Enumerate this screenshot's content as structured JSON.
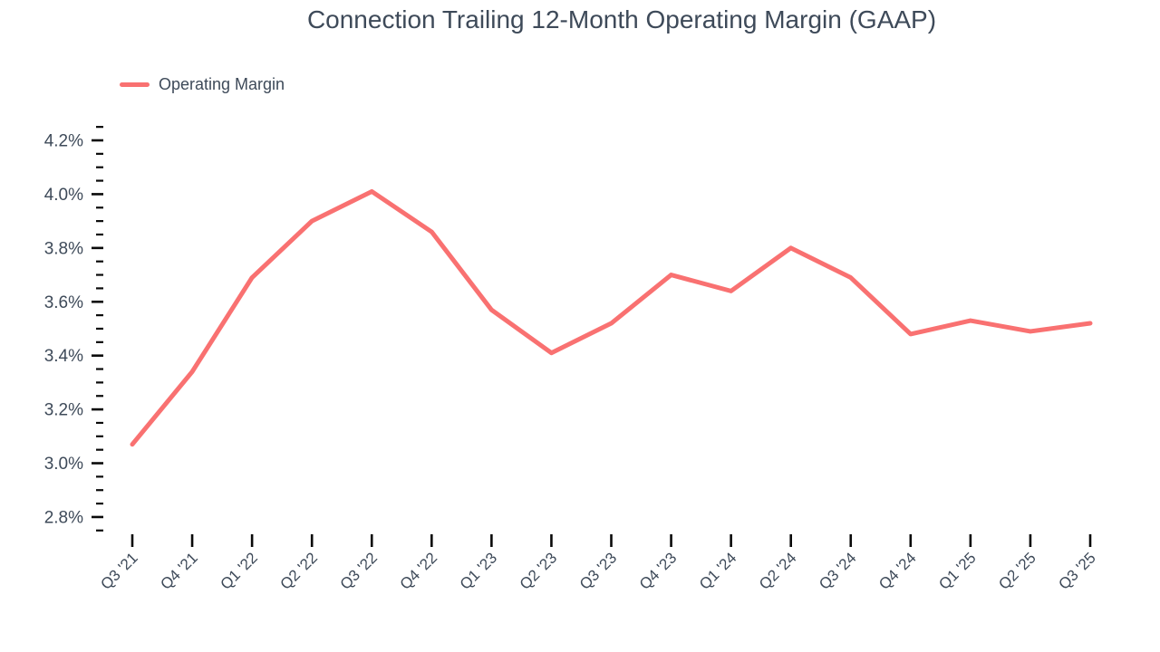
{
  "title": "Connection Trailing 12-Month Operating Margin (GAAP)",
  "legend": {
    "items": [
      {
        "label": "Operating Margin",
        "color": "#F97171"
      }
    ],
    "position": "top-left"
  },
  "colors": {
    "line": "#F97171",
    "text": "#3E4A59",
    "tick": "#0a0a0a",
    "background": "#ffffff"
  },
  "chart_data": {
    "type": "line",
    "title": "Connection Trailing 12-Month Operating Margin (GAAP)",
    "x": [
      "Q3 '21",
      "Q4 '21",
      "Q1 '22",
      "Q2 '22",
      "Q3 '22",
      "Q4 '22",
      "Q1 '23",
      "Q2 '23",
      "Q3 '23",
      "Q4 '23",
      "Q1 '24",
      "Q2 '24",
      "Q3 '24",
      "Q4 '24",
      "Q1 '25",
      "Q2 '25",
      "Q3 '25"
    ],
    "series": [
      {
        "name": "Operating Margin",
        "values": [
          3.07,
          3.34,
          3.69,
          3.9,
          4.01,
          3.86,
          3.57,
          3.41,
          3.52,
          3.7,
          3.64,
          3.8,
          3.69,
          3.48,
          3.53,
          3.49,
          3.52
        ]
      }
    ],
    "unit": "%",
    "xlabel": "",
    "ylabel": "",
    "ylim": [
      2.75,
      4.25
    ],
    "y_major_ticks": [
      2.8,
      3.0,
      3.2,
      3.4,
      3.6,
      3.8,
      4.0,
      4.2
    ],
    "y_minor_step": 0.05,
    "y_tick_format": "0.0%",
    "grid": false,
    "legend_position": "top-left",
    "x_tick_rotation": -45
  }
}
